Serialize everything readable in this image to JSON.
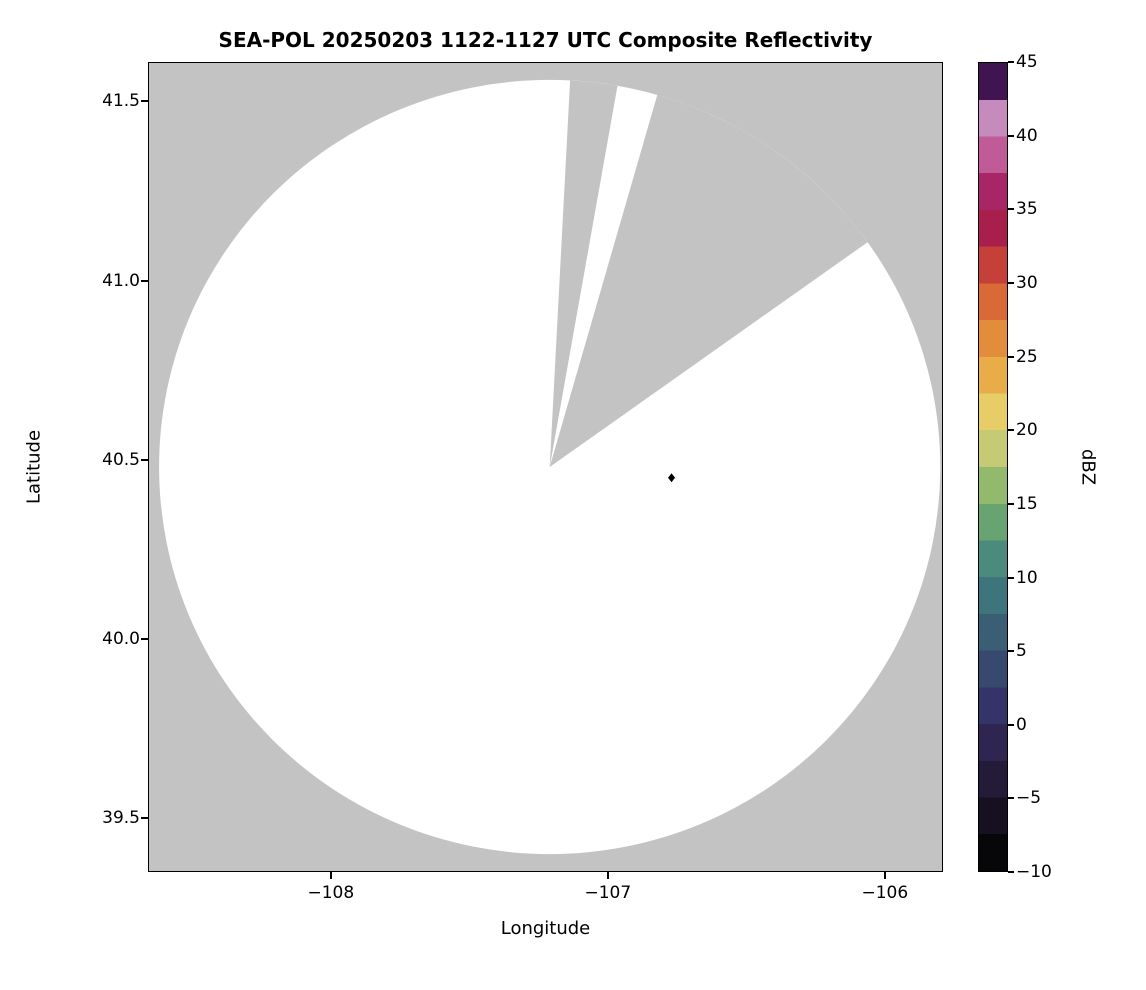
{
  "title": "SEA-POL 20250203 1122-1127 UTC Composite Reflectivity",
  "colors": {
    "no_data_gray": "#c3c3c3",
    "coverage_white": "#ffffff",
    "marker_black": "#000000",
    "frame_black": "#000000"
  },
  "chart_data": {
    "type": "heatmap",
    "title": "SEA-POL 20250203 1122-1127 UTC Composite Reflectivity",
    "xlabel": "Longitude",
    "ylabel": "Latitude",
    "xlim": [
      -108.66,
      -105.79
    ],
    "ylim": [
      39.35,
      41.61
    ],
    "grid": false,
    "legend": "colorbar-right",
    "xticks": [
      {
        "value": -108,
        "label": "−108"
      },
      {
        "value": -107,
        "label": "−107"
      },
      {
        "value": -106,
        "label": "−106"
      }
    ],
    "yticks": [
      {
        "value": 41.5,
        "label": "41.5"
      },
      {
        "value": 41.0,
        "label": "41.0"
      },
      {
        "value": 40.5,
        "label": "40.5"
      },
      {
        "value": 40.0,
        "label": "40.0"
      },
      {
        "value": 39.5,
        "label": "39.5"
      }
    ],
    "radar": {
      "center_lon": -107.21,
      "center_lat": 40.48,
      "radius_lon_deg": 1.41,
      "radius_lat_deg": 1.08,
      "missing_sectors_azimuth_deg": [
        [
          3,
          10
        ],
        [
          16,
          54.5
        ]
      ],
      "no_data_color": "#c3c3c3",
      "coverage_color": "#ffffff"
    },
    "echoes": [
      {
        "lon": -106.77,
        "lat": 40.45,
        "shape": "diamond",
        "color": "#000000"
      }
    ],
    "colorbar": {
      "label": "dBZ",
      "min": -10,
      "max": 45,
      "bin_size_dbz": 2.5,
      "ticks": [
        {
          "value": 45,
          "label": "45"
        },
        {
          "value": 40,
          "label": "40"
        },
        {
          "value": 35,
          "label": "35"
        },
        {
          "value": 30,
          "label": "30"
        },
        {
          "value": 25,
          "label": "25"
        },
        {
          "value": 20,
          "label": "20"
        },
        {
          "value": 15,
          "label": "15"
        },
        {
          "value": 10,
          "label": "10"
        },
        {
          "value": 5,
          "label": "5"
        },
        {
          "value": 0,
          "label": "0"
        },
        {
          "value": -5,
          "label": "−5"
        },
        {
          "value": -10,
          "label": "−10"
        }
      ],
      "bin_colors": [
        "#070609",
        "#161020",
        "#241b38",
        "#2e2650",
        "#353468",
        "#374a6e",
        "#3a5f75",
        "#3e747b",
        "#4b8b7d",
        "#67a471",
        "#92b96c",
        "#c6ca74",
        "#e6cd68",
        "#e8ad49",
        "#e28d3c",
        "#d96936",
        "#c44039",
        "#a81f4e",
        "#a82666",
        "#c05b97",
        "#c68bbd",
        "#3f1450"
      ]
    }
  }
}
